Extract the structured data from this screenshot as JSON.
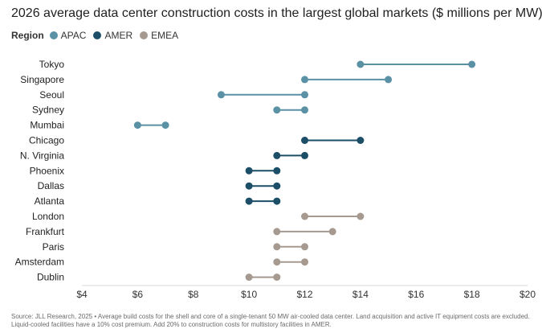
{
  "title": "2026 average data center construction costs in the largest global markets ($ millions per MW)",
  "legend": {
    "title": "Region",
    "items": [
      {
        "name": "APAC",
        "color": "#5a91a5"
      },
      {
        "name": "AMER",
        "color": "#1c4e68"
      },
      {
        "name": "EMEA",
        "color": "#a69a90"
      }
    ]
  },
  "source_note_line1": "Source: JLL Research, 2025 • Average build costs for the shell and core of a single-tenant 50 MW air-cooled data center. Land acquisition and active IT equipment costs are excluded.",
  "source_note_line2": "Liquid-cooled facilities have a 10% cost premium. Add 20% to construction costs for multistory facilities in AMER.",
  "chart_data": {
    "type": "dumbbell",
    "x_tick_labels": [
      "$4",
      "$6",
      "$8",
      "$10",
      "$12",
      "$14",
      "$16",
      "$18",
      "$20"
    ],
    "xlim": [
      4,
      20
    ],
    "x_ticks": [
      4,
      6,
      8,
      10,
      12,
      14,
      16,
      18,
      20
    ],
    "rows": [
      {
        "city": "Tokyo",
        "region": "APAC",
        "low": 14,
        "high": 18
      },
      {
        "city": "Singapore",
        "region": "APAC",
        "low": 12,
        "high": 15
      },
      {
        "city": "Seoul",
        "region": "APAC",
        "low": 9,
        "high": 12
      },
      {
        "city": "Sydney",
        "region": "APAC",
        "low": 11,
        "high": 12
      },
      {
        "city": "Mumbai",
        "region": "APAC",
        "low": 6,
        "high": 7
      },
      {
        "city": "Chicago",
        "region": "AMER",
        "low": 12,
        "high": 14
      },
      {
        "city": "N. Virginia",
        "region": "AMER",
        "low": 11,
        "high": 12
      },
      {
        "city": "Phoenix",
        "region": "AMER",
        "low": 10,
        "high": 11
      },
      {
        "city": "Dallas",
        "region": "AMER",
        "low": 10,
        "high": 11
      },
      {
        "city": "Atlanta",
        "region": "AMER",
        "low": 10,
        "high": 11
      },
      {
        "city": "London",
        "region": "EMEA",
        "low": 12,
        "high": 14
      },
      {
        "city": "Frankfurt",
        "region": "EMEA",
        "low": 11,
        "high": 13
      },
      {
        "city": "Paris",
        "region": "EMEA",
        "low": 11,
        "high": 12
      },
      {
        "city": "Amsterdam",
        "region": "EMEA",
        "low": 11,
        "high": 12
      },
      {
        "city": "Dublin",
        "region": "EMEA",
        "low": 10,
        "high": 11
      }
    ]
  }
}
